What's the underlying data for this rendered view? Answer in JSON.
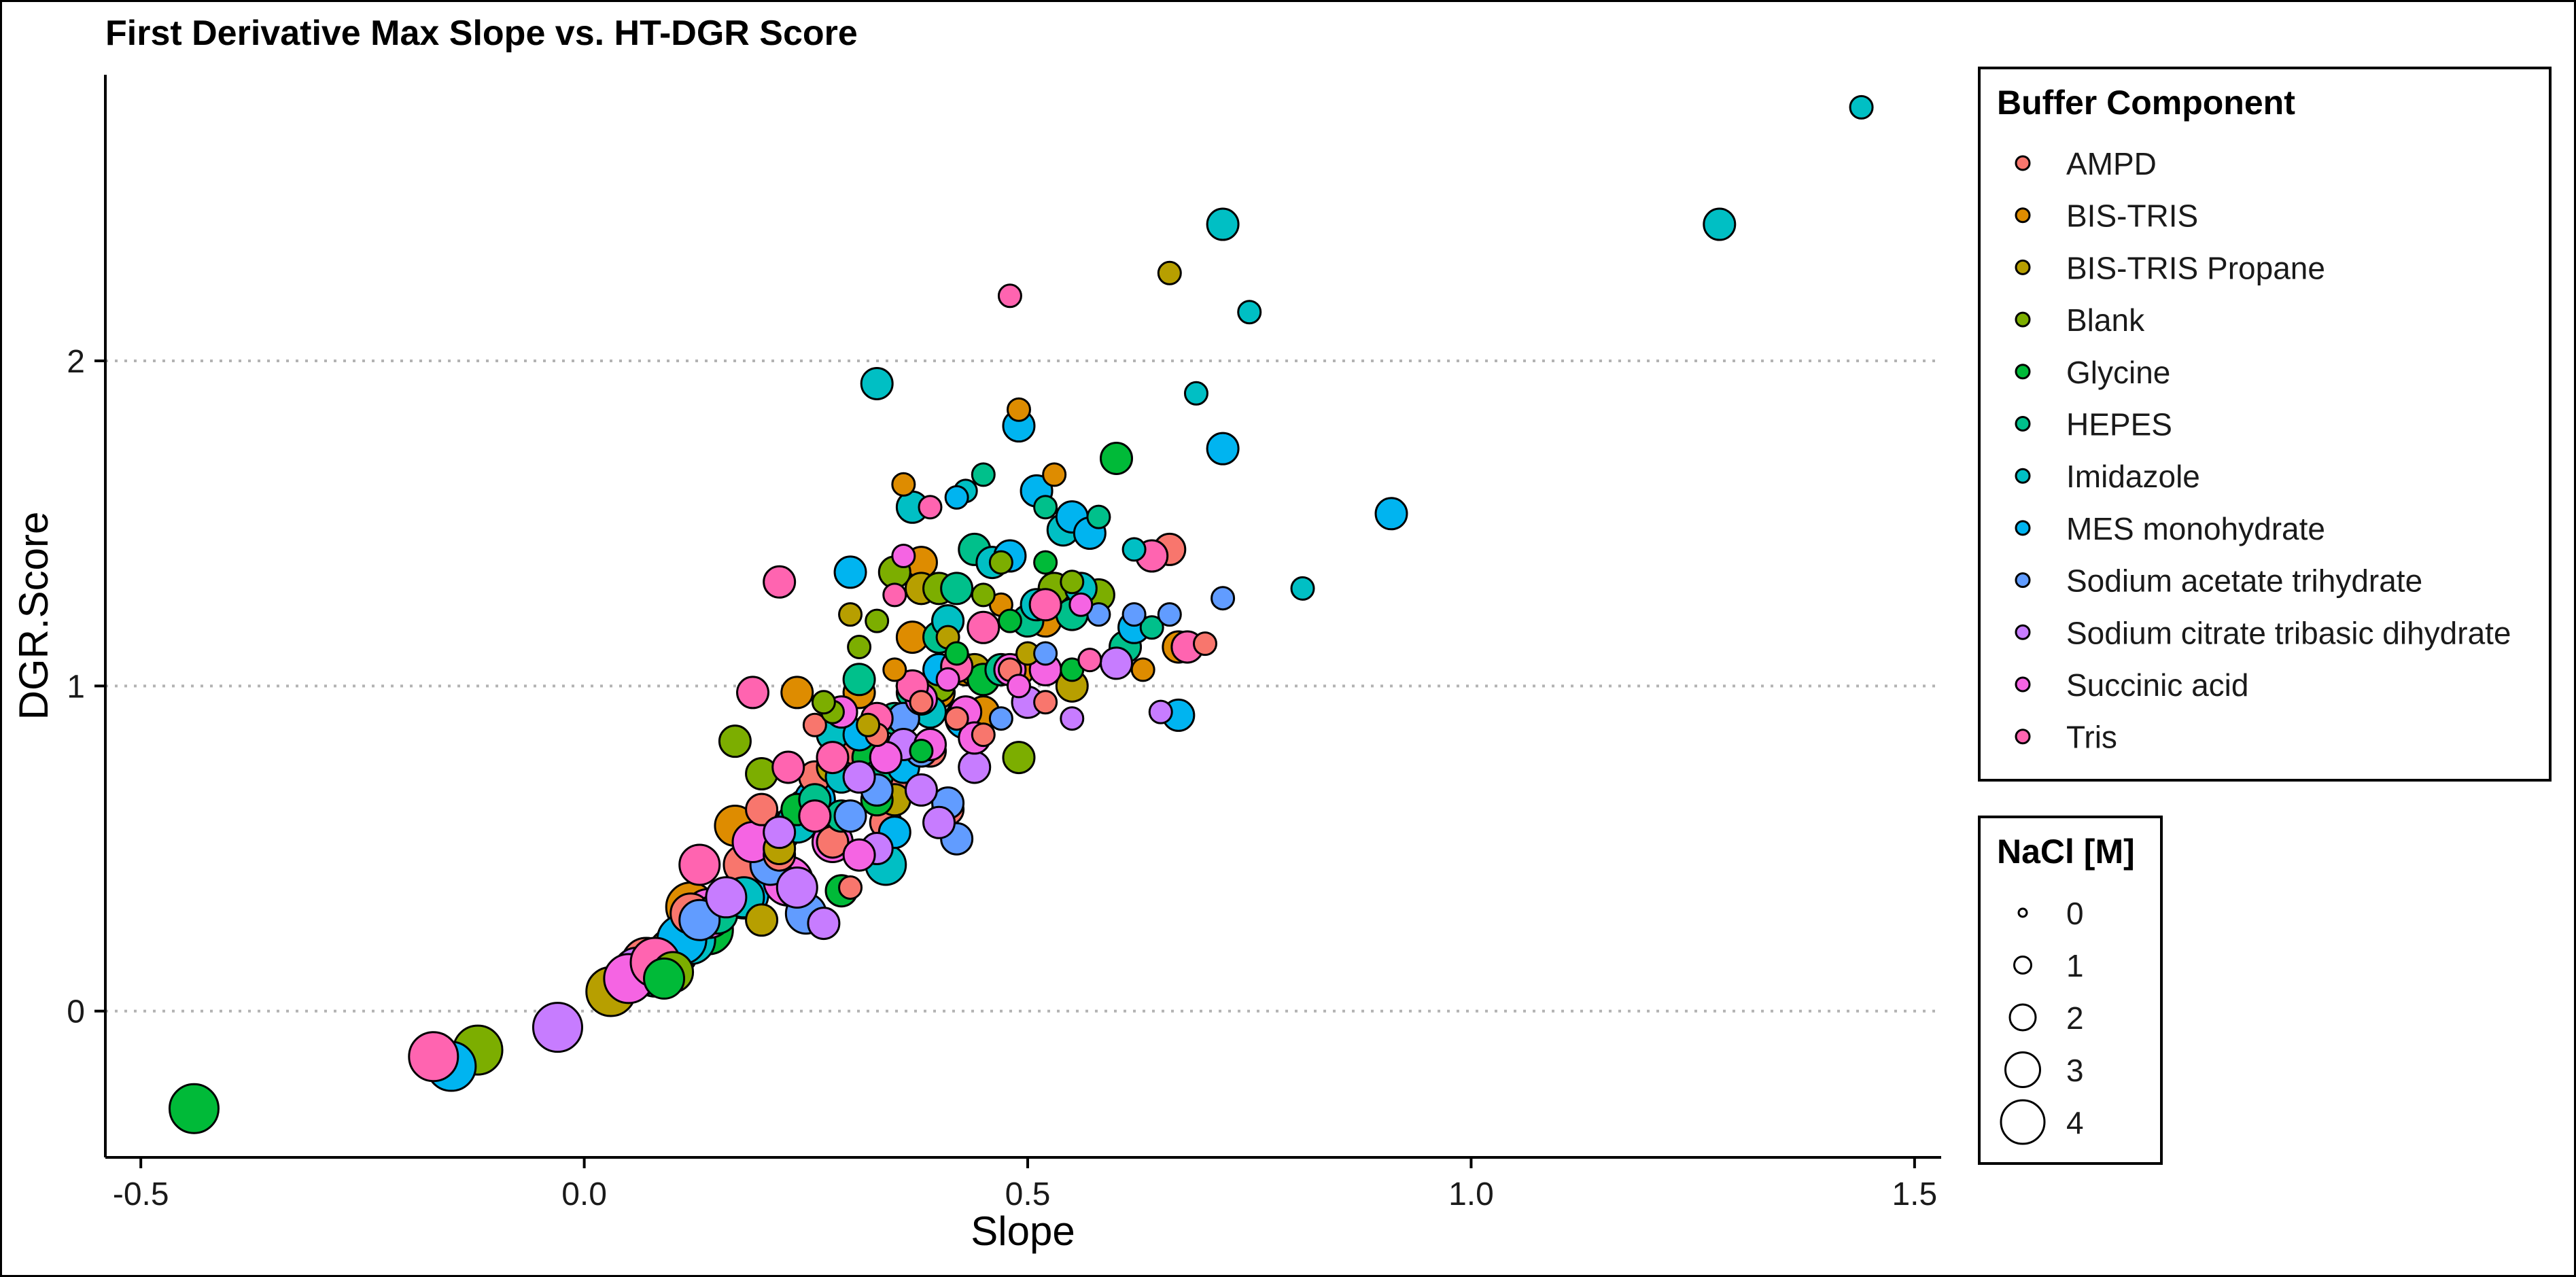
{
  "chart_data": {
    "type": "scatter",
    "title": "First Derivative Max Slope vs. HT-DGR Score",
    "xlabel": "Slope",
    "ylabel": "DGR.Score",
    "xlim": [
      -0.54,
      1.53
    ],
    "ylim": [
      -0.45,
      2.88
    ],
    "xticks": [
      -0.5,
      0.0,
      0.5,
      1.0,
      1.5
    ],
    "xtick_labels": [
      "-0.5",
      "0.0",
      "0.5",
      "1.0",
      "1.5"
    ],
    "yticks": [
      0,
      1,
      2
    ],
    "ytick_labels": [
      "0",
      "1",
      "2"
    ],
    "grid": "horizontal dotted at major y ticks",
    "legend": {
      "placement": "right",
      "color_title": "Buffer Component",
      "size_title": "NaCl [M]",
      "size_levels": [
        0,
        1,
        2,
        3,
        4
      ],
      "size_labels": [
        "0",
        "1",
        "2",
        "3",
        "4"
      ]
    },
    "series": [
      {
        "name": "AMPD",
        "color": "#F8766D",
        "points": [
          [
            0.07,
            0.15,
            4
          ],
          [
            0.12,
            0.3,
            3
          ],
          [
            0.18,
            0.45,
            3
          ],
          [
            0.2,
            0.62,
            2
          ],
          [
            0.26,
            0.72,
            2
          ],
          [
            0.3,
            0.78,
            2
          ],
          [
            0.33,
            0.85,
            1
          ],
          [
            0.35,
            0.72,
            2
          ],
          [
            0.38,
            0.95,
            1
          ],
          [
            0.41,
            0.62,
            2
          ],
          [
            0.45,
            0.85,
            1
          ],
          [
            0.52,
            0.95,
            1
          ],
          [
            0.28,
            0.52,
            2
          ],
          [
            0.34,
            0.58,
            2
          ],
          [
            0.42,
            0.9,
            1
          ],
          [
            0.48,
            1.05,
            1
          ],
          [
            0.3,
            0.38,
            1
          ],
          [
            0.66,
            1.42,
            2
          ],
          [
            0.7,
            1.13,
            1
          ],
          [
            0.22,
            0.48,
            2
          ],
          [
            0.26,
            0.88,
            1
          ],
          [
            0.39,
            0.8,
            2
          ]
        ]
      },
      {
        "name": "BIS-TRIS",
        "color": "#DE8C00",
        "points": [
          [
            0.12,
            0.32,
            4
          ],
          [
            0.17,
            0.57,
            3
          ],
          [
            0.25,
            0.62,
            3
          ],
          [
            0.29,
            0.8,
            3
          ],
          [
            0.31,
            0.98,
            2
          ],
          [
            0.35,
            1.05,
            1
          ],
          [
            0.37,
            1.15,
            2
          ],
          [
            0.4,
            0.98,
            2
          ],
          [
            0.43,
            1.05,
            2
          ],
          [
            0.47,
            1.25,
            1
          ],
          [
            0.49,
            1.85,
            1
          ],
          [
            0.53,
            1.65,
            1
          ],
          [
            0.49,
            1.05,
            2
          ],
          [
            0.67,
            1.12,
            2
          ],
          [
            0.36,
            1.62,
            1
          ],
          [
            0.38,
            1.38,
            2
          ],
          [
            0.52,
            1.2,
            2
          ],
          [
            0.57,
            1.08,
            1
          ],
          [
            0.41,
            1.2,
            2
          ],
          [
            0.45,
            0.92,
            2
          ],
          [
            0.24,
            0.98,
            2
          ],
          [
            0.63,
            1.05,
            1
          ]
        ]
      },
      {
        "name": "BIS-TRIS Propane",
        "color": "#B79F00",
        "points": [
          [
            0.03,
            0.06,
            4
          ],
          [
            0.1,
            0.18,
            4
          ],
          [
            0.22,
            0.5,
            2
          ],
          [
            0.28,
            0.75,
            2
          ],
          [
            0.32,
            0.88,
            1
          ],
          [
            0.38,
            1.3,
            2
          ],
          [
            0.44,
            1.05,
            2
          ],
          [
            0.5,
            1.1,
            1
          ],
          [
            0.55,
            1.0,
            2
          ],
          [
            0.66,
            2.27,
            1
          ],
          [
            0.2,
            0.28,
            2
          ],
          [
            0.35,
            0.65,
            2
          ],
          [
            0.3,
            1.22,
            1
          ],
          [
            0.41,
            1.15,
            1
          ]
        ]
      },
      {
        "name": "Blank",
        "color": "#7CAE00",
        "points": [
          [
            -0.12,
            -0.12,
            4
          ],
          [
            0.1,
            0.12,
            3
          ],
          [
            0.17,
            0.83,
            2
          ],
          [
            0.2,
            0.73,
            2
          ],
          [
            0.28,
            0.92,
            1
          ],
          [
            0.31,
            1.12,
            1
          ],
          [
            0.35,
            1.35,
            2
          ],
          [
            0.4,
            1.3,
            2
          ],
          [
            0.45,
            1.28,
            1
          ],
          [
            0.49,
            0.78,
            2
          ],
          [
            0.53,
            1.3,
            2
          ],
          [
            0.58,
            1.28,
            2
          ],
          [
            0.4,
            1.0,
            2
          ],
          [
            0.55,
            1.32,
            1
          ],
          [
            0.27,
            0.95,
            1
          ],
          [
            0.33,
            1.2,
            1
          ],
          [
            0.47,
            1.38,
            1
          ]
        ]
      },
      {
        "name": "Glycine",
        "color": "#00BA38",
        "points": [
          [
            -0.44,
            -0.3,
            4
          ],
          [
            0.14,
            0.25,
            4
          ],
          [
            0.09,
            0.1,
            3
          ],
          [
            0.22,
            0.55,
            3
          ],
          [
            0.29,
            0.37,
            2
          ],
          [
            0.32,
            0.78,
            2
          ],
          [
            0.36,
            0.9,
            2
          ],
          [
            0.42,
            1.1,
            1
          ],
          [
            0.48,
            1.2,
            1
          ],
          [
            0.52,
            1.38,
            1
          ],
          [
            0.6,
            1.7,
            2
          ],
          [
            0.24,
            0.62,
            2
          ],
          [
            0.33,
            0.65,
            2
          ],
          [
            0.38,
            0.8,
            1
          ],
          [
            0.45,
            1.02,
            2
          ],
          [
            0.55,
            1.05,
            1
          ]
        ]
      },
      {
        "name": "HEPES",
        "color": "#00C08B",
        "points": [
          [
            0.08,
            0.12,
            4
          ],
          [
            0.15,
            0.3,
            3
          ],
          [
            0.2,
            0.52,
            3
          ],
          [
            0.26,
            0.65,
            2
          ],
          [
            0.31,
            1.02,
            2
          ],
          [
            0.35,
            0.9,
            2
          ],
          [
            0.4,
            1.15,
            2
          ],
          [
            0.44,
            1.42,
            2
          ],
          [
            0.5,
            1.2,
            2
          ],
          [
            0.55,
            1.22,
            2
          ],
          [
            0.61,
            1.12,
            2
          ],
          [
            0.47,
            1.05,
            2
          ],
          [
            0.29,
            0.6,
            2
          ],
          [
            0.37,
            0.98,
            2
          ],
          [
            0.45,
            1.65,
            1
          ],
          [
            0.52,
            1.55,
            1
          ],
          [
            0.42,
            1.3,
            2
          ],
          [
            0.33,
            0.72,
            2
          ],
          [
            0.58,
            1.52,
            1
          ],
          [
            0.64,
            1.18,
            1
          ]
        ]
      },
      {
        "name": "Imidazole",
        "color": "#00BFC4",
        "points": [
          [
            0.12,
            0.22,
            4
          ],
          [
            0.18,
            0.35,
            3
          ],
          [
            0.24,
            0.58,
            3
          ],
          [
            0.29,
            0.72,
            2
          ],
          [
            0.33,
            1.93,
            2
          ],
          [
            0.37,
            1.55,
            2
          ],
          [
            0.41,
            1.2,
            2
          ],
          [
            0.46,
            1.38,
            2
          ],
          [
            0.51,
            1.25,
            2
          ],
          [
            0.54,
            1.48,
            2
          ],
          [
            0.62,
            1.42,
            1
          ],
          [
            0.69,
            1.9,
            1
          ],
          [
            0.72,
            2.42,
            2
          ],
          [
            0.75,
            2.15,
            1
          ],
          [
            0.81,
            1.3,
            1
          ],
          [
            1.28,
            2.42,
            2
          ],
          [
            1.44,
            2.78,
            1
          ],
          [
            0.34,
            0.45,
            3
          ],
          [
            0.28,
            0.85,
            2
          ],
          [
            0.39,
            0.92,
            2
          ],
          [
            0.43,
            1.6,
            1
          ],
          [
            0.56,
            1.3,
            2
          ]
        ]
      },
      {
        "name": "MES monohydrate",
        "color": "#00B4F0",
        "points": [
          [
            -0.15,
            -0.17,
            4
          ],
          [
            0.11,
            0.22,
            4
          ],
          [
            0.18,
            0.36,
            4
          ],
          [
            0.26,
            0.65,
            3
          ],
          [
            0.31,
            0.85,
            2
          ],
          [
            0.36,
            0.75,
            2
          ],
          [
            0.43,
            0.9,
            3
          ],
          [
            0.48,
            1.4,
            2
          ],
          [
            0.51,
            1.6,
            2
          ],
          [
            0.55,
            1.52,
            2
          ],
          [
            0.57,
            1.47,
            2
          ],
          [
            0.62,
            1.18,
            2
          ],
          [
            0.67,
            0.91,
            2
          ],
          [
            0.72,
            1.73,
            2
          ],
          [
            0.91,
            1.53,
            2
          ],
          [
            0.3,
            1.35,
            2
          ],
          [
            0.42,
            1.58,
            1
          ],
          [
            0.49,
            1.8,
            2
          ],
          [
            0.35,
            0.55,
            2
          ],
          [
            0.4,
            1.05,
            2
          ]
        ]
      },
      {
        "name": "Sodium acetate trihydrate",
        "color": "#619CFF",
        "points": [
          [
            0.13,
            0.28,
            3
          ],
          [
            0.21,
            0.45,
            3
          ],
          [
            0.25,
            0.3,
            3
          ],
          [
            0.33,
            0.68,
            2
          ],
          [
            0.38,
            0.8,
            2
          ],
          [
            0.41,
            0.64,
            2
          ],
          [
            0.47,
            0.9,
            1
          ],
          [
            0.52,
            1.1,
            1
          ],
          [
            0.58,
            1.22,
            1
          ],
          [
            0.62,
            1.22,
            1
          ],
          [
            0.66,
            1.22,
            1
          ],
          [
            0.72,
            1.27,
            1
          ],
          [
            0.42,
            0.53,
            2
          ],
          [
            0.3,
            0.6,
            2
          ],
          [
            0.36,
            0.9,
            2
          ]
        ]
      },
      {
        "name": "Sodium citrate tribasic dihydrate",
        "color": "#C77CFF",
        "points": [
          [
            -0.03,
            -0.05,
            4
          ],
          [
            0.06,
            0.12,
            4
          ],
          [
            0.16,
            0.35,
            3
          ],
          [
            0.24,
            0.38,
            3
          ],
          [
            0.27,
            0.27,
            2
          ],
          [
            0.31,
            0.72,
            2
          ],
          [
            0.36,
            0.82,
            2
          ],
          [
            0.4,
            0.58,
            2
          ],
          [
            0.44,
            0.75,
            2
          ],
          [
            0.5,
            0.95,
            2
          ],
          [
            0.55,
            0.9,
            1
          ],
          [
            0.6,
            1.07,
            2
          ],
          [
            0.65,
            0.92,
            1
          ],
          [
            0.22,
            0.55,
            2
          ],
          [
            0.33,
            0.5,
            2
          ],
          [
            0.38,
            0.68,
            2
          ]
        ]
      },
      {
        "name": "Succinic acid",
        "color": "#F564E3",
        "points": [
          [
            0.05,
            0.1,
            4
          ],
          [
            0.14,
            0.3,
            4
          ],
          [
            0.19,
            0.52,
            3
          ],
          [
            0.23,
            0.4,
            4
          ],
          [
            0.28,
            0.52,
            3
          ],
          [
            0.31,
            0.48,
            2
          ],
          [
            0.34,
            0.78,
            2
          ],
          [
            0.39,
            0.82,
            2
          ],
          [
            0.43,
            0.92,
            2
          ],
          [
            0.48,
            1.05,
            2
          ],
          [
            0.52,
            1.05,
            2
          ],
          [
            0.56,
            1.25,
            1
          ],
          [
            0.29,
            0.92,
            2
          ],
          [
            0.38,
            0.96,
            2
          ],
          [
            0.44,
            0.84,
            2
          ],
          [
            0.49,
            1.0,
            1
          ],
          [
            0.36,
            1.4,
            1
          ],
          [
            0.41,
            1.02,
            1
          ]
        ]
      },
      {
        "name": "Tris",
        "color": "#FF64B0",
        "points": [
          [
            -0.17,
            -0.14,
            4
          ],
          [
            0.08,
            0.15,
            4
          ],
          [
            0.13,
            0.45,
            3
          ],
          [
            0.19,
            0.98,
            2
          ],
          [
            0.23,
            0.75,
            2
          ],
          [
            0.28,
            0.78,
            2
          ],
          [
            0.33,
            0.9,
            2
          ],
          [
            0.37,
            1.0,
            2
          ],
          [
            0.42,
            1.06,
            2
          ],
          [
            0.48,
            2.2,
            1
          ],
          [
            0.52,
            1.25,
            2
          ],
          [
            0.57,
            1.08,
            1
          ],
          [
            0.64,
            1.4,
            2
          ],
          [
            0.68,
            1.12,
            2
          ],
          [
            0.22,
            1.32,
            2
          ],
          [
            0.26,
            0.6,
            2
          ],
          [
            0.35,
            1.28,
            1
          ],
          [
            0.39,
            1.55,
            1
          ],
          [
            0.45,
            1.18,
            2
          ]
        ]
      }
    ]
  }
}
